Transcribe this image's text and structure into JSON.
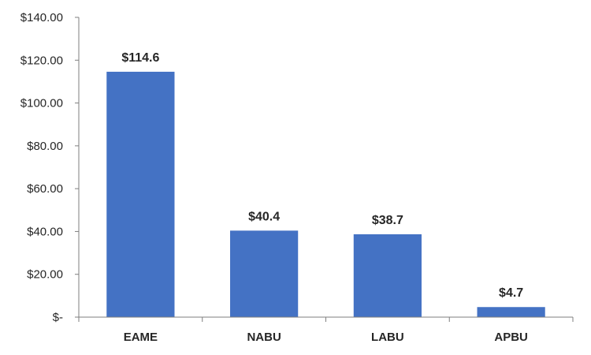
{
  "chart_data": {
    "type": "bar",
    "categories": [
      "EAME",
      "NABU",
      "LABU",
      "APBU"
    ],
    "values": [
      114.6,
      40.4,
      38.7,
      4.7
    ],
    "data_labels": [
      "$114.6",
      "$40.4",
      "$38.7",
      "$4.7"
    ],
    "title": "",
    "xlabel": "",
    "ylabel": "",
    "ylim": [
      0,
      140
    ],
    "y_ticks": [
      0,
      20,
      40,
      60,
      80,
      100,
      120,
      140
    ],
    "y_tick_labels": [
      "$-",
      "$20.00",
      "$40.00",
      "$60.00",
      "$80.00",
      "$100.00",
      "$120.00",
      "$140.00"
    ],
    "grid": false,
    "legend": "none",
    "colors": {
      "bar": "#4472C4",
      "axis": "#7f7f7f",
      "text": "#262626"
    }
  }
}
